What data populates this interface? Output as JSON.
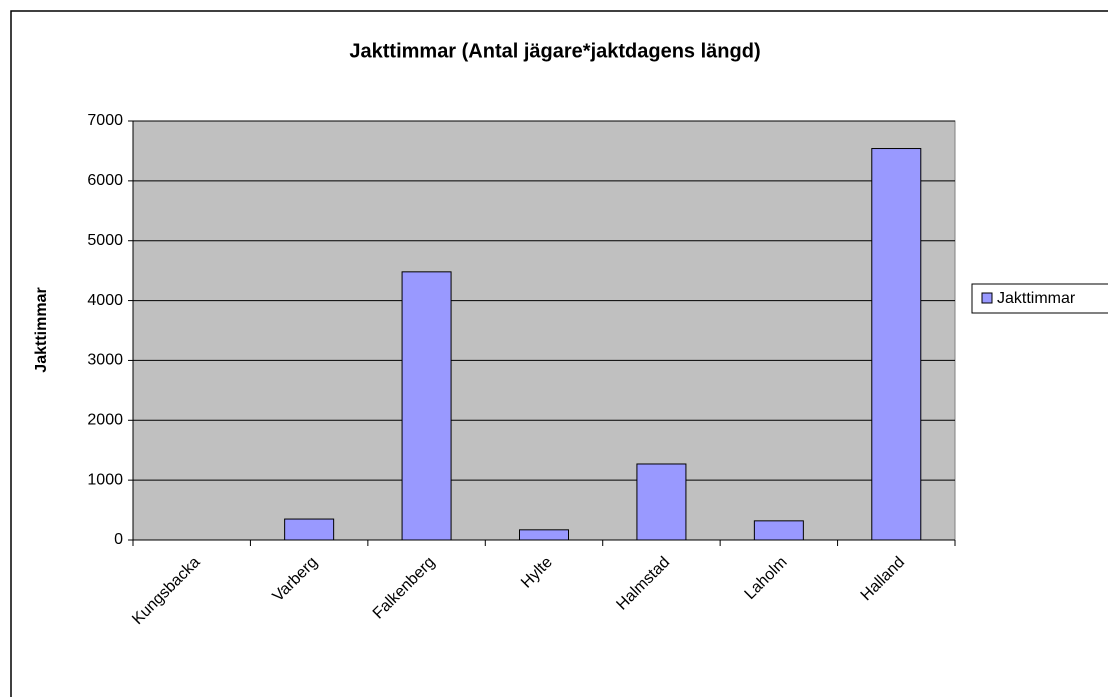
{
  "chart_data": {
    "type": "bar",
    "title": "Jakttimmar (Antal jägare*jaktdagens längd)",
    "y_label": "Jakttimmar",
    "categories": [
      "Kungsbacka",
      "Varberg",
      "Falkenberg",
      "Hylte",
      "Halmstad",
      "Laholm",
      "Halland"
    ],
    "series": [
      {
        "name": "Jakttimmar",
        "color": "#9999ff",
        "values": [
          0,
          350,
          4480,
          170,
          1270,
          320,
          6540
        ]
      }
    ],
    "ylim": [
      0,
      7000
    ],
    "yticks": [
      0,
      1000,
      2000,
      3000,
      4000,
      5000,
      6000,
      7000
    ],
    "grid": true,
    "legend": "right"
  }
}
